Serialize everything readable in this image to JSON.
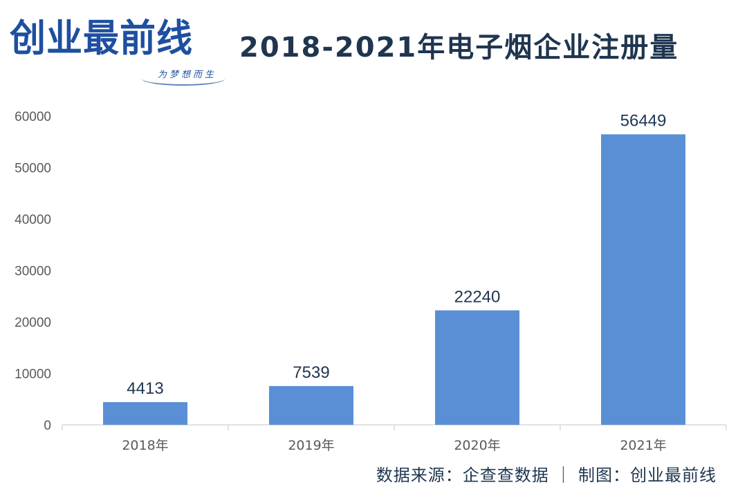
{
  "logo": {
    "text": "创业最前线",
    "slogan": "为梦想而生"
  },
  "title": "2018-2021年电子烟企业注册量",
  "source": "数据来源：企查查数据 ｜ 制图：创业最前线",
  "colors": {
    "bar": "#5a8fd6",
    "title": "#1f3550",
    "logo": "#1e4fa0"
  },
  "chart_data": {
    "type": "bar",
    "title": "2018-2021年电子烟企业注册量",
    "categories": [
      "2018年",
      "2019年",
      "2020年",
      "2021年"
    ],
    "values": [
      4413,
      7539,
      22240,
      56449
    ],
    "data_labels": [
      "4413",
      "7539",
      "22240",
      "56449"
    ],
    "yticks": [
      "0",
      "10000",
      "20000",
      "30000",
      "40000",
      "50000",
      "60000"
    ],
    "ylim": [
      0,
      60000
    ],
    "grid": false,
    "legend": "none"
  }
}
